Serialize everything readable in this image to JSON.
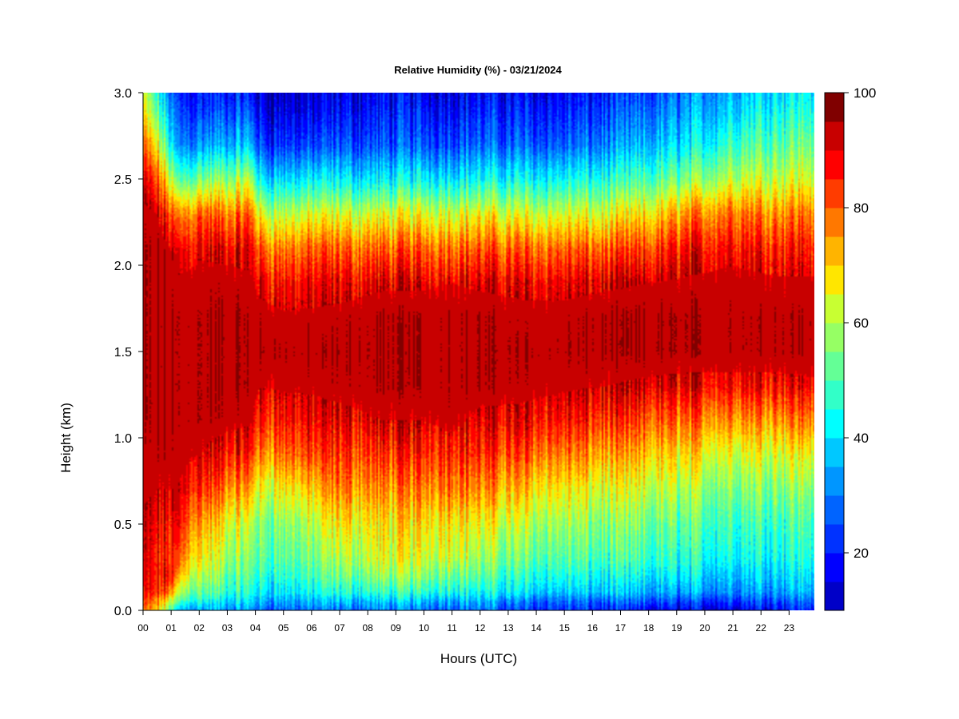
{
  "chart_data": {
    "type": "heatmap",
    "title": "Relative Humidity (%) - 03/21/2024",
    "xlabel": "Hours (UTC)",
    "ylabel": "Height (km)",
    "x_ticks": [
      "00",
      "01",
      "02",
      "03",
      "04",
      "05",
      "06",
      "07",
      "08",
      "09",
      "10",
      "11",
      "12",
      "13",
      "14",
      "15",
      "16",
      "17",
      "18",
      "19",
      "20",
      "21",
      "22",
      "23"
    ],
    "x_range_hours": [
      0,
      23.9
    ],
    "y_ticks": [
      "0.0",
      "0.5",
      "1.0",
      "1.5",
      "2.0",
      "2.5",
      "3.0"
    ],
    "y_range_km": [
      0.0,
      3.0
    ],
    "colorbar": {
      "range": [
        10,
        100
      ],
      "ticks": [
        "20",
        "40",
        "60",
        "80",
        "100"
      ],
      "levels": [
        10,
        15,
        20,
        25,
        30,
        35,
        40,
        45,
        50,
        55,
        60,
        65,
        70,
        75,
        80,
        85,
        90,
        95,
        100
      ],
      "colors": [
        "#00008b",
        "#0000c8",
        "#0000ff",
        "#0032ff",
        "#0064ff",
        "#0096ff",
        "#00c8ff",
        "#00ffff",
        "#32ffc8",
        "#64ff96",
        "#96ff64",
        "#c8ff32",
        "#ffe600",
        "#ffb400",
        "#ff7800",
        "#ff3c00",
        "#ff0000",
        "#c80000",
        "#800000"
      ]
    },
    "profile_heights_km": [
      0.0,
      0.05,
      0.1,
      0.2,
      0.3,
      0.5,
      0.7,
      0.9,
      1.1,
      1.3,
      1.5,
      1.7,
      1.9,
      2.1,
      2.3,
      2.5,
      2.7,
      2.9,
      3.0
    ],
    "profiles": [
      {
        "hour": 0.0,
        "rh": [
          80,
          85,
          90,
          92,
          93,
          95,
          97,
          98,
          99,
          99,
          99,
          99,
          99,
          99,
          98,
          92,
          82,
          70,
          65
        ]
      },
      {
        "hour": 0.5,
        "rh": [
          75,
          80,
          88,
          90,
          90,
          93,
          96,
          98,
          99,
          99,
          99,
          99,
          99,
          99,
          96,
          85,
          70,
          55,
          50
        ]
      },
      {
        "hour": 0.9,
        "rh": [
          60,
          70,
          85,
          95,
          90,
          92,
          96,
          98,
          99,
          99,
          99,
          99,
          99,
          97,
          88,
          70,
          50,
          40,
          35
        ]
      },
      {
        "hour": 1.2,
        "rh": [
          42,
          55,
          65,
          78,
          85,
          92,
          96,
          98,
          99,
          99,
          99,
          99,
          97,
          92,
          80,
          55,
          35,
          28,
          25
        ]
      },
      {
        "hour": 2.0,
        "rh": [
          40,
          50,
          58,
          66,
          72,
          80,
          90,
          96,
          99,
          99,
          99,
          99,
          98,
          95,
          85,
          60,
          38,
          28,
          25
        ]
      },
      {
        "hour": 3.0,
        "rh": [
          38,
          45,
          52,
          58,
          63,
          70,
          82,
          92,
          98,
          99,
          99,
          99,
          98,
          94,
          82,
          62,
          40,
          30,
          25
        ]
      },
      {
        "hour": 3.8,
        "rh": [
          38,
          45,
          50,
          56,
          60,
          66,
          78,
          90,
          97,
          99,
          99,
          99,
          97,
          94,
          85,
          65,
          42,
          30,
          25
        ]
      },
      {
        "hour": 4.2,
        "rh": [
          33,
          40,
          47,
          52,
          56,
          60,
          68,
          80,
          90,
          96,
          99,
          98,
          94,
          85,
          68,
          45,
          28,
          20,
          18
        ]
      },
      {
        "hour": 5.0,
        "rh": [
          33,
          40,
          46,
          52,
          57,
          62,
          72,
          84,
          92,
          97,
          99,
          97,
          92,
          82,
          66,
          45,
          28,
          20,
          18
        ]
      },
      {
        "hour": 6.0,
        "rh": [
          33,
          40,
          47,
          54,
          58,
          64,
          74,
          86,
          93,
          97,
          99,
          97,
          93,
          84,
          68,
          46,
          28,
          20,
          18
        ]
      },
      {
        "hour": 7.0,
        "rh": [
          34,
          42,
          50,
          58,
          64,
          72,
          82,
          88,
          94,
          98,
          99,
          98,
          93,
          84,
          68,
          46,
          30,
          22,
          20
        ]
      },
      {
        "hour": 8.5,
        "rh": [
          35,
          42,
          52,
          62,
          68,
          72,
          80,
          88,
          96,
          99,
          99,
          99,
          95,
          84,
          68,
          46,
          30,
          24,
          22
        ]
      },
      {
        "hour": 10.0,
        "rh": [
          35,
          42,
          52,
          62,
          68,
          74,
          82,
          90,
          96,
          99,
          99,
          99,
          95,
          85,
          70,
          48,
          32,
          25,
          22
        ]
      },
      {
        "hour": 11.0,
        "rh": [
          35,
          42,
          52,
          62,
          70,
          76,
          86,
          93,
          98,
          99,
          99,
          99,
          96,
          86,
          70,
          48,
          32,
          25,
          22
        ]
      },
      {
        "hour": 12.0,
        "rh": [
          33,
          40,
          48,
          56,
          62,
          70,
          80,
          88,
          94,
          99,
          99,
          99,
          95,
          85,
          70,
          48,
          32,
          25,
          22
        ]
      },
      {
        "hour": 13.5,
        "rh": [
          28,
          35,
          45,
          52,
          58,
          66,
          76,
          86,
          94,
          98,
          99,
          98,
          94,
          84,
          68,
          48,
          32,
          25,
          22
        ]
      },
      {
        "hour": 15.0,
        "rh": [
          28,
          33,
          42,
          50,
          56,
          63,
          72,
          82,
          92,
          97,
          99,
          98,
          94,
          84,
          68,
          48,
          32,
          25,
          22
        ]
      },
      {
        "hour": 16.5,
        "rh": [
          25,
          32,
          42,
          48,
          54,
          60,
          68,
          78,
          88,
          96,
          99,
          99,
          95,
          84,
          68,
          50,
          35,
          28,
          25
        ]
      },
      {
        "hour": 18.0,
        "rh": [
          22,
          30,
          38,
          46,
          52,
          58,
          66,
          75,
          85,
          95,
          99,
          99,
          96,
          86,
          72,
          54,
          40,
          32,
          28
        ]
      },
      {
        "hour": 19.5,
        "rh": [
          20,
          28,
          38,
          45,
          50,
          56,
          63,
          72,
          83,
          94,
          99,
          99,
          97,
          92,
          80,
          60,
          45,
          38,
          35
        ]
      },
      {
        "hour": 21.0,
        "rh": [
          22,
          30,
          38,
          44,
          50,
          55,
          62,
          70,
          82,
          94,
          99,
          99,
          98,
          94,
          85,
          68,
          55,
          45,
          42
        ]
      },
      {
        "hour": 22.5,
        "rh": [
          25,
          32,
          40,
          45,
          50,
          55,
          62,
          70,
          82,
          94,
          99,
          99,
          97,
          92,
          82,
          68,
          58,
          50,
          46
        ]
      },
      {
        "hour": 23.9,
        "rh": [
          28,
          35,
          42,
          47,
          52,
          56,
          63,
          72,
          84,
          95,
          99,
          99,
          97,
          92,
          84,
          70,
          60,
          52,
          48
        ]
      }
    ],
    "grid": false,
    "legend": "colorbar-right"
  }
}
